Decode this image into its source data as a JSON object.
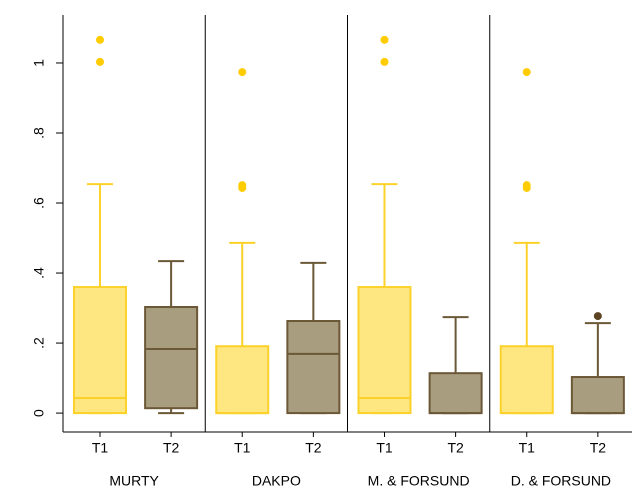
{
  "chart_data": {
    "type": "box",
    "ylim": [
      -0.054,
      1.137
    ],
    "yticks": [
      0,
      {
        "value": 0.2,
        "label": ".2"
      },
      {
        "value": 0.4,
        "label": ".4"
      },
      {
        "value": 0.6,
        "label": ".6"
      },
      {
        "value": 0.8,
        "label": ".8"
      },
      1
    ],
    "panels": [
      {
        "label": "MURTY",
        "boxes": [
          {
            "name": "T1",
            "color": "#fcd22a",
            "fill": "#fee680",
            "outlier_color": "#ffcc00",
            "min": 0,
            "q1": 0,
            "median": 0.043,
            "q3": 0.36,
            "max": 0.654,
            "outliers": [
              1.066,
              1.003
            ]
          },
          {
            "name": "T2",
            "color": "#6b5836",
            "fill": "#a99d80",
            "outlier_color": "#5c4321",
            "min": 0,
            "q1": 0.014,
            "median": 0.183,
            "q3": 0.303,
            "max": 0.434,
            "outliers": []
          }
        ]
      },
      {
        "label": "DAKPO",
        "boxes": [
          {
            "name": "T1",
            "color": "#fcd22a",
            "fill": "#fee680",
            "outlier_color": "#ffcc00",
            "min": 0,
            "q1": 0,
            "median": 0,
            "q3": 0.191,
            "max": 0.486,
            "outliers": [
              0.974,
              0.651,
              0.643
            ]
          },
          {
            "name": "T2",
            "color": "#6b5836",
            "fill": "#a99d80",
            "outlier_color": "#5c4321",
            "min": 0,
            "q1": 0,
            "median": 0.169,
            "q3": 0.263,
            "max": 0.429,
            "outliers": []
          }
        ]
      },
      {
        "label": "M. & FORSUND",
        "boxes": [
          {
            "name": "T1",
            "color": "#fcd22a",
            "fill": "#fee680",
            "outlier_color": "#ffcc00",
            "min": 0,
            "q1": 0,
            "median": 0.043,
            "q3": 0.36,
            "max": 0.654,
            "outliers": [
              1.066,
              1.003
            ]
          },
          {
            "name": "T2",
            "color": "#6b5836",
            "fill": "#a99d80",
            "outlier_color": "#5c4321",
            "min": 0,
            "q1": 0,
            "median": 0,
            "q3": 0.114,
            "max": 0.274,
            "outliers": []
          }
        ]
      },
      {
        "label": "D. & FORSUND",
        "boxes": [
          {
            "name": "T1",
            "color": "#fcd22a",
            "fill": "#fee680",
            "outlier_color": "#ffcc00",
            "min": 0,
            "q1": 0,
            "median": 0,
            "q3": 0.191,
            "max": 0.486,
            "outliers": [
              0.974,
              0.651,
              0.643
            ]
          },
          {
            "name": "T2",
            "color": "#6b5836",
            "fill": "#a99d80",
            "outlier_color": "#5c4321",
            "min": 0,
            "q1": 0,
            "median": 0,
            "q3": 0.103,
            "max": 0.257,
            "outliers": [
              0.277
            ]
          }
        ]
      }
    ]
  }
}
